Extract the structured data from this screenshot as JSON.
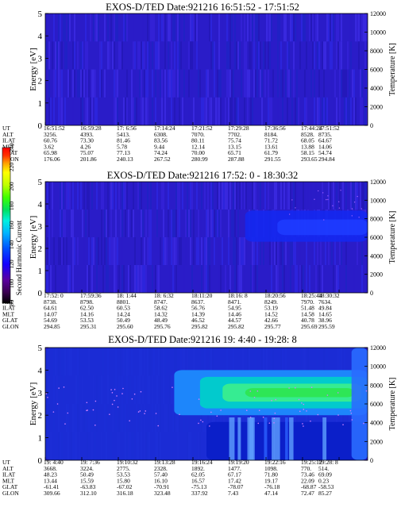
{
  "chart_data": [
    {
      "type": "heatmap",
      "title": "EXOS-D/TED   Date:921216  16:51:52 - 17:51:52",
      "ylabel": "Energy [eV]",
      "y2label": "Temperature [K]",
      "ylim": [
        0,
        5
      ],
      "y2lim": [
        0,
        12000
      ],
      "yticks": [
        "0",
        "1",
        "2",
        "3",
        "4",
        "5"
      ],
      "y2ticks": [
        "0",
        "2000",
        "4000",
        "6000",
        "8000",
        "10000",
        "12000"
      ],
      "row_labels": [
        "UT",
        "ALT",
        "ILAT",
        "MLT",
        "GLAT",
        "GLON"
      ],
      "columns": [
        [
          "16:51:52",
          "3256.",
          "60.76",
          "3.62",
          "65.98",
          "176.06"
        ],
        [
          "16:59:28",
          "4393.",
          "73.30",
          "4.26",
          "75.07",
          "201.86"
        ],
        [
          "17: 6:56",
          "5413.",
          "81.46",
          "5.78",
          "77.13",
          "240.13"
        ],
        [
          "17:14:24",
          "6308.",
          "83.56",
          "9.44",
          "74.24",
          "267.52"
        ],
        [
          "17:21:52",
          "7070.",
          "80.11",
          "12.14",
          "70.00",
          "280.99"
        ],
        [
          "17:29:28",
          "7702.",
          "75.74",
          "13.15",
          "65.71",
          "287.88"
        ],
        [
          "17:36:56",
          "8184.",
          "71.72",
          "13.61",
          "61.79",
          "291.55"
        ],
        [
          "17:44:24",
          "8528.",
          "68.05",
          "13.88",
          "58.15",
          "293.65"
        ],
        [
          "17:51:52",
          "8735.",
          "64.67",
          "14.06",
          "54.74",
          "294.84"
        ]
      ],
      "intensity_level": "background",
      "features": []
    },
    {
      "type": "heatmap",
      "title": "EXOS-D/TED   Date:921216  17:52: 0 - 18:30:32",
      "ylabel": "Energy [eV]",
      "y2label": "Temperature [K]",
      "ylim": [
        0,
        5
      ],
      "y2lim": [
        0,
        12000
      ],
      "yticks": [
        "0",
        "1",
        "2",
        "3",
        "4",
        "5"
      ],
      "y2ticks": [
        "0",
        "2000",
        "4000",
        "6000",
        "8000",
        "10000",
        "12000"
      ],
      "row_labels": [
        "UT",
        "ALT",
        "ILAT",
        "MLT",
        "GLAT",
        "GLON"
      ],
      "columns": [
        [
          "17:52: 0",
          "8738.",
          "64.61",
          "14.07",
          "54.69",
          "294.85"
        ],
        [
          "17:59:36",
          "8798.",
          "62.50",
          "14.16",
          "53.53",
          "295.31"
        ],
        [
          "18: 1:44",
          "8801.",
          "60.53",
          "14.24",
          "50.49",
          "295.60"
        ],
        [
          "18: 6:32",
          "8747.",
          "58.62",
          "14.32",
          "48.49",
          "295.76"
        ],
        [
          "18:11:20",
          "8637.",
          "56.76",
          "14.39",
          "46.52",
          "295.82"
        ],
        [
          "18:16: 8",
          "8471.",
          "54.95",
          "14.46",
          "44.57",
          "295.82"
        ],
        [
          "18:20:56",
          "8249.",
          "53.19",
          "14.52",
          "42.66",
          "295.77"
        ],
        [
          "18:25:44",
          "7970.",
          "51.48",
          "14.58",
          "40.78",
          "295.69"
        ],
        [
          "18:30:32",
          "7634.",
          "49.84",
          "14.65",
          "38.96",
          "295.59"
        ]
      ],
      "intensity_level": "low with enhancement at 2.5-3.5 eV after 18:20",
      "features": [
        {
          "x0": 0.62,
          "x1": 1.0,
          "y0": 2.3,
          "y1": 3.7,
          "color": "#1428f0"
        },
        {
          "x0": 0.72,
          "x1": 1.0,
          "y0": 2.6,
          "y1": 3.3,
          "color": "#1e3cff"
        }
      ]
    },
    {
      "type": "heatmap",
      "title": "EXOS-D/TED   Date:921216  19: 4:40 - 19:28: 8",
      "ylabel": "Energy [eV]",
      "y2label": "Temperature [K]",
      "ylim": [
        0,
        5
      ],
      "y2lim": [
        0,
        12000
      ],
      "yticks": [
        "0",
        "1",
        "2",
        "3",
        "4",
        "5"
      ],
      "y2ticks": [
        "0",
        "2000",
        "4000",
        "6000",
        "8000",
        "10000",
        "12000"
      ],
      "row_labels": [
        "UT",
        "ALT",
        "ILAT",
        "MLT",
        "GLAT",
        "GLON"
      ],
      "columns": [
        [
          "19: 4:40",
          "3668.",
          "48.23",
          "13.44",
          "-61.41",
          "309.66"
        ],
        [
          "19: 7:36",
          "3224.",
          "50.49",
          "15.59",
          "-63.83",
          "312.10"
        ],
        [
          "19:10:32",
          "2775.",
          "53.53",
          "15.80",
          "-67.02",
          "316.18"
        ],
        [
          "19:13:28",
          "2328.",
          "57.40",
          "16.10",
          "-70.91",
          "323.48"
        ],
        [
          "19:16:24",
          "1892.",
          "62.05",
          "16.57",
          "-75.13",
          "337.92"
        ],
        [
          "19:19:20",
          "1477.",
          "67.17",
          "17.42",
          "-78.07",
          "7.43"
        ],
        [
          "19:22:16",
          "1098.",
          "71.80",
          "19.17",
          "-76.18",
          "47.14"
        ],
        [
          "19:25:12",
          "770.",
          "73.46",
          "22.09",
          "-68.87",
          "72.47"
        ],
        [
          "19:28: 8",
          "514.",
          "69.09",
          "0.23",
          "-58.53",
          "85.27"
        ]
      ],
      "intensity_level": "high, peak 2.7-3.3 eV after 19:16",
      "features": [
        {
          "x0": 0.0,
          "x1": 1.0,
          "y0": 0.0,
          "y1": 5.0,
          "color": "#1a2fd6"
        },
        {
          "x0": 0.4,
          "x1": 1.0,
          "y0": 2.0,
          "y1": 4.0,
          "color": "#1e90ff"
        },
        {
          "x0": 0.48,
          "x1": 1.0,
          "y0": 2.3,
          "y1": 3.7,
          "color": "#00d2c8"
        },
        {
          "x0": 0.55,
          "x1": 0.98,
          "y0": 2.6,
          "y1": 3.4,
          "color": "#3cf08c"
        },
        {
          "x0": 0.62,
          "x1": 0.96,
          "y0": 2.8,
          "y1": 3.2,
          "color": "#2ee650"
        },
        {
          "x0": 0.5,
          "x1": 1.0,
          "y0": 0.0,
          "y1": 1.7,
          "color": "#0a1ec8"
        },
        {
          "x0": 0.95,
          "x1": 1.0,
          "y0": 0.0,
          "y1": 5.0,
          "color": "#2a6cff"
        }
      ]
    }
  ],
  "colorbar": {
    "label": "Second Harmonic Current",
    "ticks": [
      "80",
      "100",
      "120",
      "140",
      "160",
      "180",
      "200",
      "220",
      "240"
    ],
    "colors": [
      "#000000",
      "#3a0050",
      "#5a00a0",
      "#1400ff",
      "#0050ff",
      "#00b4ff",
      "#00f0e0",
      "#00e060",
      "#40ff00",
      "#c0ff00",
      "#ffff00",
      "#ffa000",
      "#ff3000",
      "#ff0000"
    ]
  }
}
